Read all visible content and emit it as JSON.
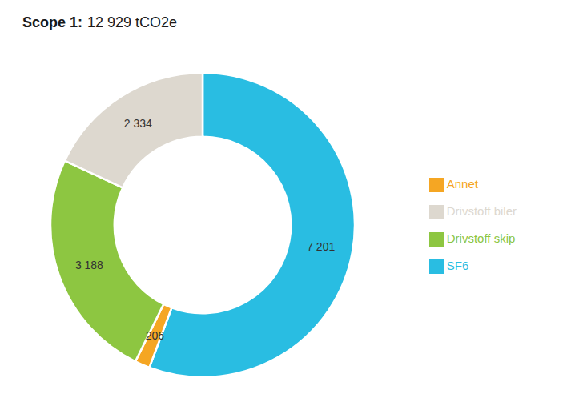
{
  "chart_data": {
    "type": "pie",
    "title": "Scope 1:",
    "subtitle": "12 929 tCO2e",
    "categories": [
      "SF6",
      "Annet",
      "Drivstoff skip",
      "Drivstoff biler"
    ],
    "values": [
      7201,
      206,
      3188,
      2334
    ],
    "value_labels": [
      "7 201",
      "206",
      "3 188",
      "2 334"
    ],
    "colors": [
      "#29bde2",
      "#f5a623",
      "#8dc641",
      "#ddd8cf"
    ],
    "data_labels": true,
    "legend": "right"
  }
}
